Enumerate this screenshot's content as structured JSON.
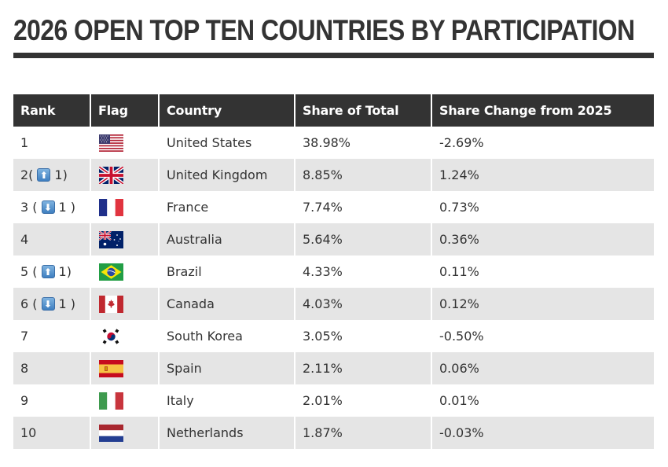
{
  "page": {
    "title": "2026 OPEN TOP TEN COUNTRIES BY PARTICIPATION"
  },
  "table": {
    "headers": [
      "Rank",
      "Flag",
      "Country",
      "Share of Total",
      "Share Change from 2025"
    ],
    "rows": [
      {
        "rank": "1",
        "movement": null,
        "move_amount": "",
        "flag": "us-flag-icon",
        "country": "United States",
        "share": "38.98%",
        "change": "-2.69%"
      },
      {
        "rank": "2(",
        "movement": "up",
        "move_amount": "1)",
        "flag": "uk-flag-icon",
        "country": "United Kingdom",
        "share": "8.85%",
        "change": "1.24%"
      },
      {
        "rank": "3 (",
        "movement": "down",
        "move_amount": "1 )",
        "flag": "france-flag-icon",
        "country": "France",
        "share": "7.74%",
        "change": "0.73%"
      },
      {
        "rank": "4",
        "movement": null,
        "move_amount": "",
        "flag": "australia-flag-icon",
        "country": "Australia",
        "share": "5.64%",
        "change": "0.36%"
      },
      {
        "rank": "5 (",
        "movement": "up",
        "move_amount": "1)",
        "flag": "brazil-flag-icon",
        "country": "Brazil",
        "share": "4.33%",
        "change": "0.11%"
      },
      {
        "rank": "6 (",
        "movement": "down",
        "move_amount": "1 )",
        "flag": "canada-flag-icon",
        "country": "Canada",
        "share": "4.03%",
        "change": "0.12%"
      },
      {
        "rank": "7",
        "movement": null,
        "move_amount": "",
        "flag": "south-korea-flag-icon",
        "country": "South Korea",
        "share": "3.05%",
        "change": "-0.50%"
      },
      {
        "rank": "8",
        "movement": null,
        "move_amount": "",
        "flag": "spain-flag-icon",
        "country": "Spain",
        "share": "2.11%",
        "change": "0.06%"
      },
      {
        "rank": "9",
        "movement": null,
        "move_amount": "",
        "flag": "italy-flag-icon",
        "country": "Italy",
        "share": "2.01%",
        "change": "0.01%"
      },
      {
        "rank": "10",
        "movement": null,
        "move_amount": "",
        "flag": "netherlands-flag-icon",
        "country": "Netherlands",
        "share": "1.87%",
        "change": "-0.03%"
      }
    ]
  },
  "icons": {
    "up": "⬆",
    "down": "⬇"
  },
  "colors": {
    "header_bg": "#333333",
    "header_text": "#ffffff",
    "row_alt": "#e5e5e5",
    "text": "#333333"
  }
}
